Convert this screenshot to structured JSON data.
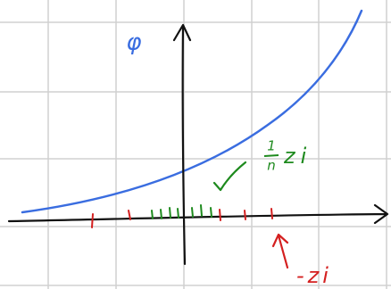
{
  "diagram": {
    "function_label": "φ",
    "mean_label": {
      "numerator": "1",
      "denominator": "n",
      "symbol": "zi"
    },
    "point_label": "-zi"
  }
}
